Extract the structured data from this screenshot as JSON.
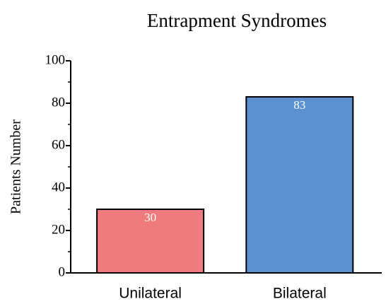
{
  "chart_data": {
    "type": "bar",
    "title": "Entrapment Syndromes",
    "y_label": "Patients Number",
    "categories": [
      "Unilateral",
      "Bilateral"
    ],
    "values": [
      30,
      83
    ],
    "colors": [
      "#f07b7e",
      "#5b8fcf"
    ],
    "ylim": [
      0,
      100
    ],
    "yticks": [
      0,
      20,
      40,
      60,
      80,
      100
    ],
    "minor_yticks": [
      10,
      30,
      50,
      70,
      90
    ],
    "grid": false
  }
}
